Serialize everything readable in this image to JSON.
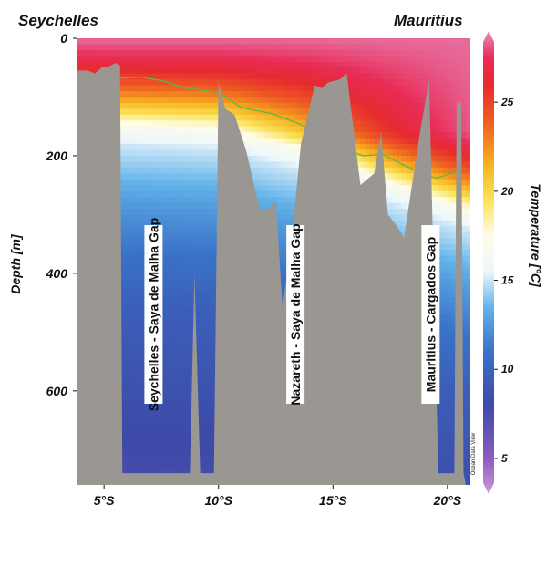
{
  "chart_data": {
    "type": "heatmap",
    "description_locations": {
      "left_label": "Seychelles",
      "right_label": "Mauritius"
    },
    "ylabel": "Depth [m]",
    "colorbar_label": "Temperature [°C]",
    "credit": "Ocean Data View",
    "xlim": [
      3.8,
      21.0
    ],
    "ylim": [
      0,
      760
    ],
    "x_ticks": [
      {
        "value": 5,
        "label": "5°S"
      },
      {
        "value": 10,
        "label": "10°S"
      },
      {
        "value": 15,
        "label": "15°S"
      },
      {
        "value": 20,
        "label": "20°S"
      }
    ],
    "y_ticks": [
      {
        "value": 0,
        "label": "0"
      },
      {
        "value": 200,
        "label": "200"
      },
      {
        "value": 400,
        "label": "400"
      },
      {
        "value": 600,
        "label": "600"
      }
    ],
    "colorbar": {
      "range": [
        3,
        29
      ],
      "ticks": [
        {
          "value": 5,
          "label": "5"
        },
        {
          "value": 10,
          "label": "10"
        },
        {
          "value": 15,
          "label": "15"
        },
        {
          "value": 20,
          "label": "20"
        },
        {
          "value": 25,
          "label": "25"
        }
      ],
      "stops": [
        {
          "value": 3,
          "color": "#c99ad8"
        },
        {
          "value": 5,
          "color": "#8a5cc0"
        },
        {
          "value": 8,
          "color": "#3d4aa8"
        },
        {
          "value": 11,
          "color": "#3a72c8"
        },
        {
          "value": 13.5,
          "color": "#63b4ea"
        },
        {
          "value": 15.5,
          "color": "#eef7fb"
        },
        {
          "value": 17.5,
          "color": "#fffde6"
        },
        {
          "value": 19.5,
          "color": "#fbe35a"
        },
        {
          "value": 21.5,
          "color": "#f7b21e"
        },
        {
          "value": 24,
          "color": "#ee5a22"
        },
        {
          "value": 26,
          "color": "#e62a30"
        },
        {
          "value": 27.5,
          "color": "#e82c56"
        },
        {
          "value": 29,
          "color": "#e68cc0"
        }
      ]
    },
    "temperature_profile": [
      {
        "depth": 0,
        "temp": 28.5
      },
      {
        "depth": 30,
        "temp": 27.5
      },
      {
        "depth": 60,
        "temp": 25.5
      },
      {
        "depth": 90,
        "temp": 23
      },
      {
        "depth": 120,
        "temp": 20
      },
      {
        "depth": 150,
        "temp": 16.5
      },
      {
        "depth": 180,
        "temp": 15
      },
      {
        "depth": 220,
        "temp": 14
      },
      {
        "depth": 280,
        "temp": 12.5
      },
      {
        "depth": 360,
        "temp": 11
      },
      {
        "depth": 460,
        "temp": 9.5
      },
      {
        "depth": 600,
        "temp": 8.5
      },
      {
        "depth": 760,
        "temp": 7.5
      }
    ],
    "north_south_depth_shift": [
      {
        "lat": 3.8,
        "shift": 0
      },
      {
        "lat": 10,
        "shift": 10
      },
      {
        "lat": 14,
        "shift": 50
      },
      {
        "lat": 18,
        "shift": 110
      },
      {
        "lat": 21,
        "shift": 150
      }
    ],
    "isotherm_line": {
      "color": "#5bb84a",
      "points": [
        {
          "lat": 4.5,
          "depth": 70
        },
        {
          "lat": 5.7,
          "depth": 68
        },
        {
          "lat": 6.6,
          "depth": 66
        },
        {
          "lat": 7.5,
          "depth": 72
        },
        {
          "lat": 8.6,
          "depth": 85
        },
        {
          "lat": 10.0,
          "depth": 92
        },
        {
          "lat": 11.0,
          "depth": 118
        },
        {
          "lat": 12.3,
          "depth": 128
        },
        {
          "lat": 13.5,
          "depth": 145
        },
        {
          "lat": 14.4,
          "depth": 165
        },
        {
          "lat": 15.3,
          "depth": 185
        },
        {
          "lat": 16.3,
          "depth": 200
        },
        {
          "lat": 17.2,
          "depth": 198
        },
        {
          "lat": 18.2,
          "depth": 218
        },
        {
          "lat": 19.1,
          "depth": 232
        },
        {
          "lat": 19.5,
          "depth": 238
        },
        {
          "lat": 20.5,
          "depth": 226
        }
      ]
    },
    "bathymetry": {
      "color": "#9a9692",
      "points": [
        {
          "lat": 3.8,
          "depth": 55
        },
        {
          "lat": 4.3,
          "depth": 55
        },
        {
          "lat": 4.6,
          "depth": 60
        },
        {
          "lat": 4.9,
          "depth": 50
        },
        {
          "lat": 5.2,
          "depth": 48
        },
        {
          "lat": 5.5,
          "depth": 42
        },
        {
          "lat": 5.7,
          "depth": 46
        },
        {
          "lat": 5.8,
          "depth": 740
        },
        {
          "lat": 8.75,
          "depth": 740
        },
        {
          "lat": 8.95,
          "depth": 400
        },
        {
          "lat": 9.2,
          "depth": 740
        },
        {
          "lat": 9.8,
          "depth": 740
        },
        {
          "lat": 10.0,
          "depth": 75
        },
        {
          "lat": 10.3,
          "depth": 120
        },
        {
          "lat": 10.7,
          "depth": 130
        },
        {
          "lat": 11.2,
          "depth": 190
        },
        {
          "lat": 11.8,
          "depth": 290
        },
        {
          "lat": 12.2,
          "depth": 290
        },
        {
          "lat": 12.5,
          "depth": 275
        },
        {
          "lat": 12.8,
          "depth": 460
        },
        {
          "lat": 13.3,
          "depth": 300
        },
        {
          "lat": 13.6,
          "depth": 180
        },
        {
          "lat": 14.2,
          "depth": 80
        },
        {
          "lat": 14.5,
          "depth": 85
        },
        {
          "lat": 14.8,
          "depth": 75
        },
        {
          "lat": 15.3,
          "depth": 70
        },
        {
          "lat": 15.6,
          "depth": 60
        },
        {
          "lat": 16.2,
          "depth": 250
        },
        {
          "lat": 16.8,
          "depth": 230
        },
        {
          "lat": 17.1,
          "depth": 160
        },
        {
          "lat": 17.4,
          "depth": 300
        },
        {
          "lat": 17.8,
          "depth": 320
        },
        {
          "lat": 18.1,
          "depth": 340
        },
        {
          "lat": 18.8,
          "depth": 160
        },
        {
          "lat": 19.2,
          "depth": 70
        },
        {
          "lat": 19.6,
          "depth": 740
        },
        {
          "lat": 20.3,
          "depth": 740
        },
        {
          "lat": 20.4,
          "depth": 110
        },
        {
          "lat": 20.6,
          "depth": 110
        },
        {
          "lat": 20.7,
          "depth": 740
        }
      ]
    },
    "gap_labels": [
      {
        "text": "Seychelles - Saya de Malha Gap",
        "lat": 7.2,
        "depth": 470
      },
      {
        "text": "Nazareth - Saya de Malha Gap",
        "lat": 13.4,
        "depth": 470
      },
      {
        "text": "Mauritius - Cargados Gap",
        "lat": 19.3,
        "depth": 470
      }
    ]
  }
}
